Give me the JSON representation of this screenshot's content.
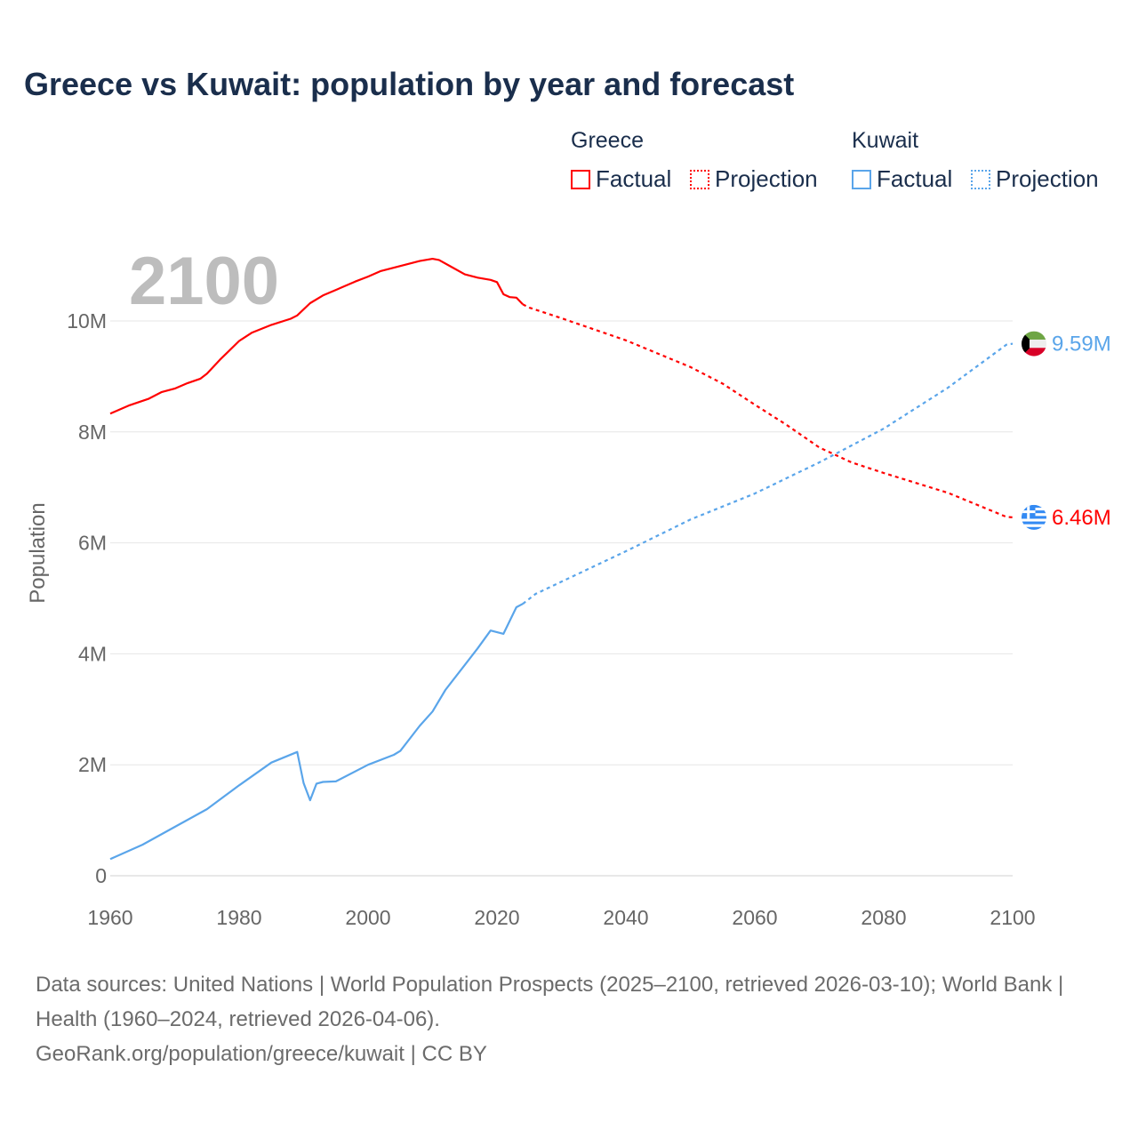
{
  "title": "Greece vs Kuwait: population by year and forecast",
  "legend": {
    "groups": [
      {
        "name": "Greece",
        "factual": "Factual",
        "projection": "Projection",
        "color": "#ff0000"
      },
      {
        "name": "Kuwait",
        "factual": "Factual",
        "projection": "Projection",
        "color": "#5aa5ea"
      }
    ]
  },
  "year_overlay": "2100",
  "footer": {
    "sources": "Data sources: United Nations | World Population Prospects (2025–2100, retrieved 2026-03-10); World Bank | Health (1960–2024, retrieved 2026-04-06).",
    "credit": "GeoRank.org/population/greece/kuwait | CC BY"
  },
  "chart_data": {
    "type": "line",
    "title": "Greece vs Kuwait: population by year and forecast",
    "xlabel": "",
    "ylabel": "Population",
    "xlim": [
      1960,
      2100
    ],
    "ylim": [
      0,
      10000000
    ],
    "x_ticks": [
      "1960",
      "1980",
      "2000",
      "2020",
      "2040",
      "2060",
      "2080",
      "2100"
    ],
    "y_ticks": [
      {
        "v": 0,
        "label": "0"
      },
      {
        "v": 2000000,
        "label": "2M"
      },
      {
        "v": 4000000,
        "label": "4M"
      },
      {
        "v": 6000000,
        "label": "6M"
      },
      {
        "v": 8000000,
        "label": "8M"
      },
      {
        "v": 10000000,
        "label": "10M"
      }
    ],
    "grid": true,
    "series": [
      {
        "name": "Greece",
        "color": "#ff0000",
        "end_label": "6.46M",
        "flag": "greece",
        "factual": [
          [
            1960,
            8.33
          ],
          [
            1963,
            8.48
          ],
          [
            1966,
            8.6
          ],
          [
            1968,
            8.72
          ],
          [
            1970,
            8.78
          ],
          [
            1972,
            8.88
          ],
          [
            1974,
            8.96
          ],
          [
            1975,
            9.05
          ],
          [
            1977,
            9.3
          ],
          [
            1980,
            9.64
          ],
          [
            1982,
            9.79
          ],
          [
            1985,
            9.93
          ],
          [
            1988,
            10.04
          ],
          [
            1989,
            10.1
          ],
          [
            1991,
            10.32
          ],
          [
            1993,
            10.46
          ],
          [
            1995,
            10.56
          ],
          [
            1998,
            10.71
          ],
          [
            2000,
            10.8
          ],
          [
            2002,
            10.9
          ],
          [
            2005,
            10.99
          ],
          [
            2008,
            11.08
          ],
          [
            2010,
            11.12
          ],
          [
            2011,
            11.1
          ],
          [
            2013,
            10.97
          ],
          [
            2015,
            10.84
          ],
          [
            2017,
            10.78
          ],
          [
            2019,
            10.74
          ],
          [
            2020,
            10.7
          ],
          [
            2021,
            10.48
          ],
          [
            2022,
            10.43
          ],
          [
            2023,
            10.42
          ],
          [
            2024,
            10.3
          ]
        ],
        "projection": [
          [
            2024,
            10.3
          ],
          [
            2025,
            10.24
          ],
          [
            2030,
            10.05
          ],
          [
            2040,
            9.65
          ],
          [
            2050,
            9.17
          ],
          [
            2055,
            8.87
          ],
          [
            2060,
            8.49
          ],
          [
            2065,
            8.12
          ],
          [
            2070,
            7.72
          ],
          [
            2075,
            7.45
          ],
          [
            2080,
            7.26
          ],
          [
            2090,
            6.9
          ],
          [
            2099,
            6.47
          ],
          [
            2100,
            6.46
          ]
        ]
      },
      {
        "name": "Kuwait",
        "color": "#5aa5ea",
        "end_label": "9.59M",
        "flag": "kuwait",
        "factual": [
          [
            1960,
            0.3
          ],
          [
            1965,
            0.56
          ],
          [
            1970,
            0.88
          ],
          [
            1975,
            1.2
          ],
          [
            1980,
            1.63
          ],
          [
            1985,
            2.04
          ],
          [
            1989,
            2.23
          ],
          [
            1990,
            1.67
          ],
          [
            1991,
            1.36
          ],
          [
            1992,
            1.66
          ],
          [
            1993,
            1.69
          ],
          [
            1995,
            1.7
          ],
          [
            2000,
            2.0
          ],
          [
            2004,
            2.18
          ],
          [
            2005,
            2.25
          ],
          [
            2008,
            2.7
          ],
          [
            2010,
            2.96
          ],
          [
            2012,
            3.35
          ],
          [
            2015,
            3.8
          ],
          [
            2017,
            4.1
          ],
          [
            2019,
            4.42
          ],
          [
            2021,
            4.36
          ],
          [
            2023,
            4.84
          ],
          [
            2024,
            4.9
          ]
        ],
        "projection": [
          [
            2024,
            4.9
          ],
          [
            2026,
            5.08
          ],
          [
            2030,
            5.3
          ],
          [
            2040,
            5.85
          ],
          [
            2050,
            6.42
          ],
          [
            2060,
            6.89
          ],
          [
            2070,
            7.45
          ],
          [
            2080,
            8.06
          ],
          [
            2090,
            8.8
          ],
          [
            2099,
            9.57
          ],
          [
            2100,
            9.59
          ]
        ]
      }
    ]
  }
}
